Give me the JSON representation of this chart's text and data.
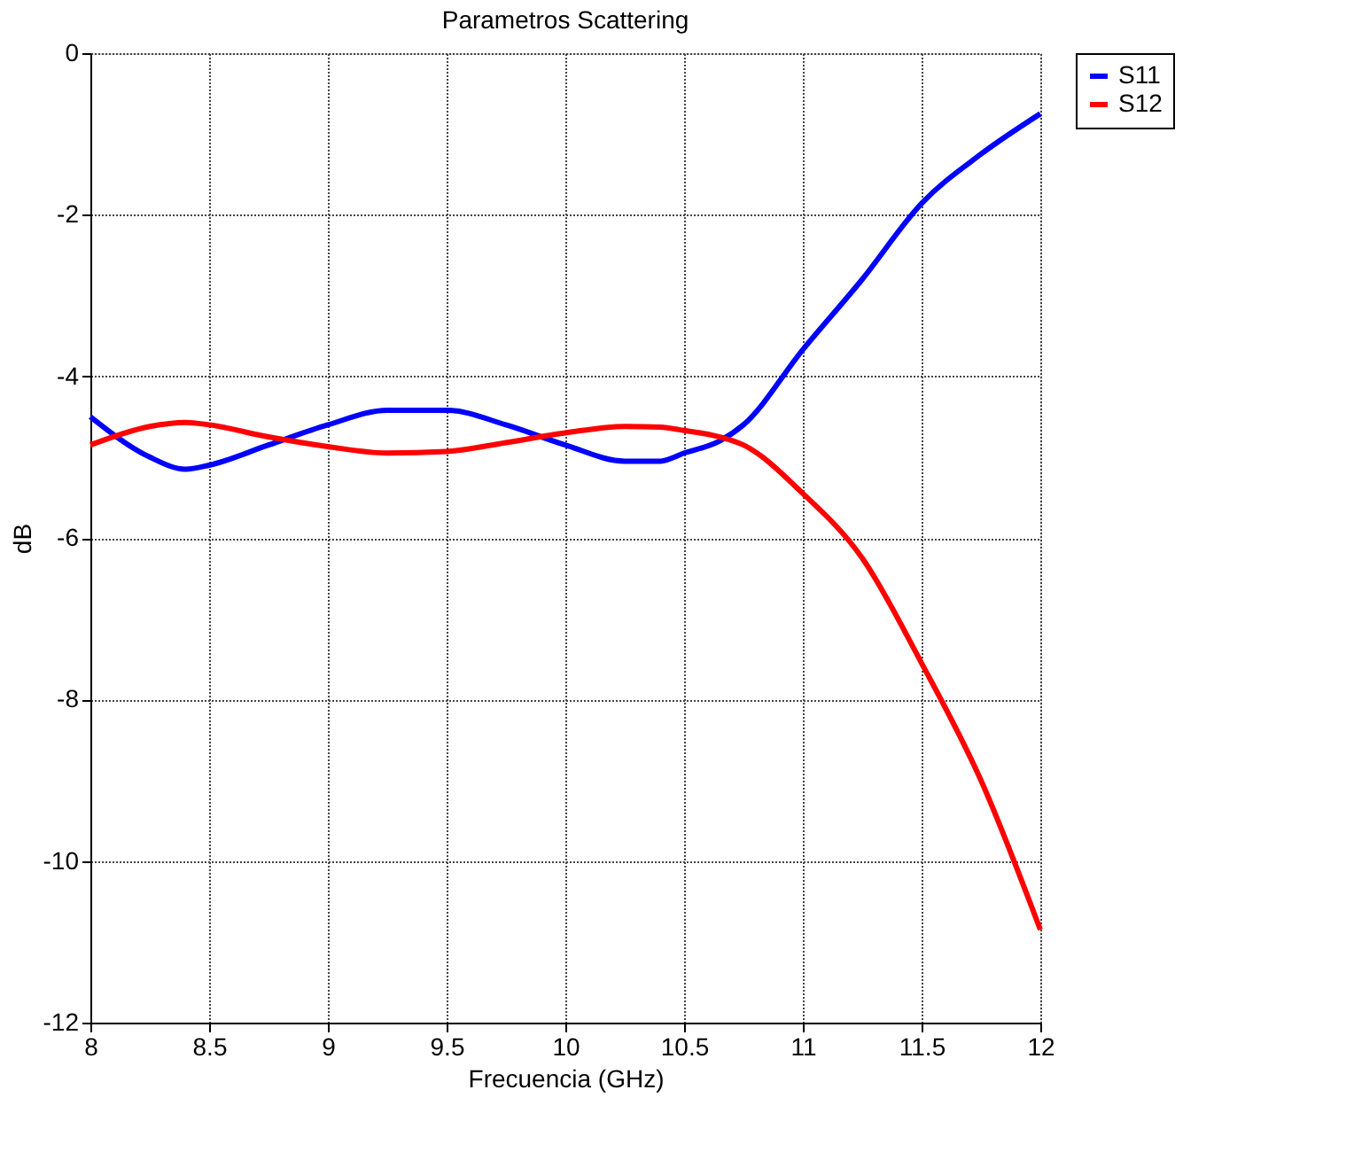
{
  "chart_data": {
    "type": "line",
    "title": "Parametros Scattering",
    "xlabel": "Frecuencia (GHz)",
    "ylabel": "dB",
    "x": [
      8,
      8.25,
      8.4,
      8.5,
      8.75,
      9,
      9.25,
      9.5,
      9.75,
      10,
      10.25,
      10.4,
      10.5,
      10.65,
      10.75,
      11,
      11.25,
      11.5,
      11.75,
      12
    ],
    "series": [
      {
        "name": "S11",
        "color": "#0000ff",
        "values": [
          -4.5,
          -5.0,
          -5.15,
          -5.1,
          -4.85,
          -4.6,
          -4.42,
          -4.42,
          -4.6,
          -4.85,
          -5.05,
          -5.05,
          -4.95,
          -4.8,
          -4.6,
          -3.67,
          -2.8,
          -1.86,
          -1.25,
          -0.75
        ]
      },
      {
        "name": "S12",
        "color": "#ff0000",
        "values": [
          -4.85,
          -4.62,
          -4.57,
          -4.6,
          -4.75,
          -4.87,
          -4.95,
          -4.93,
          -4.82,
          -4.7,
          -4.62,
          -4.63,
          -4.67,
          -4.75,
          -4.85,
          -5.45,
          -6.25,
          -7.55,
          -9.0,
          -10.85
        ]
      }
    ],
    "xlim": [
      8,
      12
    ],
    "xticks": [
      8,
      8.5,
      9,
      9.5,
      10,
      10.5,
      11,
      11.5,
      12
    ],
    "ylim": [
      -12,
      0
    ],
    "yticks": [
      -12,
      -10,
      -8,
      -6,
      -4,
      -2,
      0
    ],
    "grid": true,
    "legend": "top right",
    "line_style": "solid",
    "marker": "none"
  }
}
